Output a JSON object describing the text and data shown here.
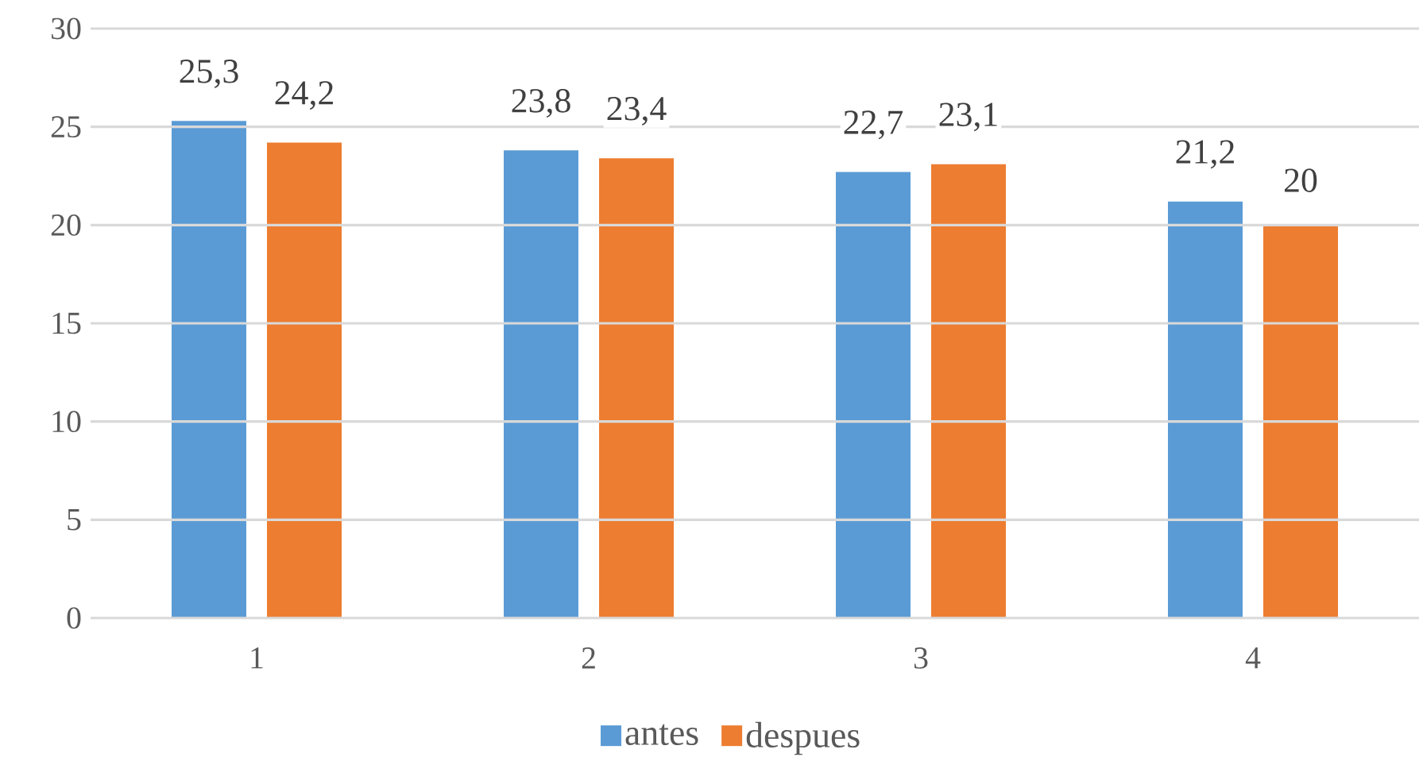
{
  "chart_data": {
    "type": "bar",
    "categories": [
      "1",
      "2",
      "3",
      "4"
    ],
    "series": [
      {
        "name": "antes",
        "color": "#5b9bd5",
        "values": [
          25.3,
          23.8,
          22.7,
          21.2
        ],
        "value_labels": [
          "25,3",
          "23,8",
          "22,7",
          "21,2"
        ]
      },
      {
        "name": "despues",
        "color": "#ed7d31",
        "values": [
          24.2,
          23.4,
          23.1,
          20
        ],
        "value_labels": [
          "24,2",
          "23,4",
          "23,1",
          "20"
        ]
      }
    ],
    "ylim": [
      0,
      30
    ],
    "yticks": [
      0,
      5,
      10,
      15,
      20,
      25,
      30
    ],
    "grid": "y",
    "legend": "bottom"
  }
}
